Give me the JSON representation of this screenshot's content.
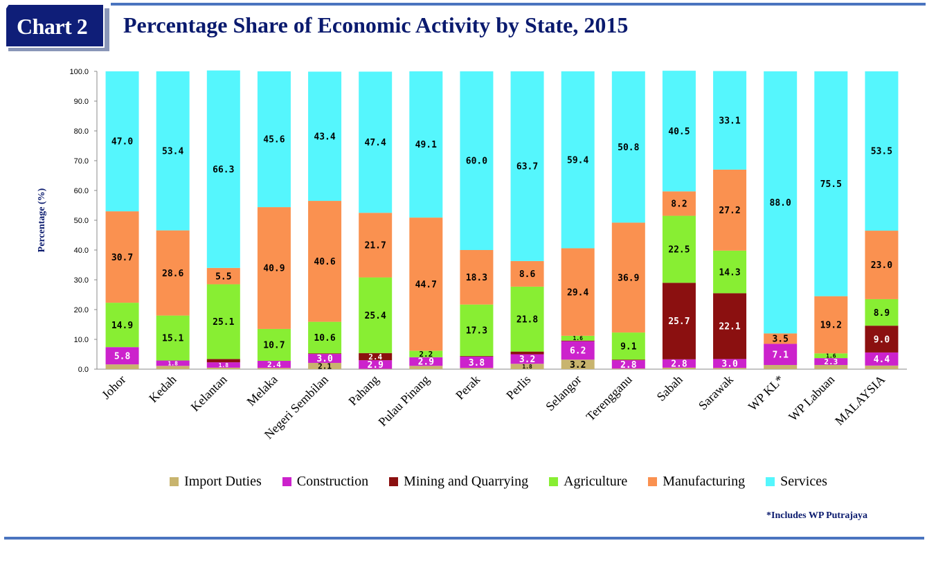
{
  "header": {
    "badge": "Chart 2",
    "title": "Percentage Share of Economic Activity by State, 2015"
  },
  "footnote": "*Includes WP Putrajaya",
  "chart_data": {
    "type": "bar",
    "stacked": true,
    "title": "Percentage Share of Economic Activity by State, 2015",
    "ylabel": "Percentage (%)",
    "xlabel": "",
    "ylim": [
      0,
      100
    ],
    "yticks": [
      "0.0",
      "10.0",
      "20.0",
      "30.0",
      "40.0",
      "50.0",
      "60.0",
      "70.0",
      "80.0",
      "90.0",
      "100.0"
    ],
    "grid": false,
    "legend_position": "bottom",
    "categories": [
      "Johor",
      "Kedah",
      "Kelantan",
      "Melaka",
      "Negeri Sembilan",
      "Pahang",
      "Pulau Pinang",
      "Perak",
      "Perlis",
      "Selangor",
      "Terengganu",
      "Sabah",
      "Sarawak",
      "WP KL*",
      "WP Labuan",
      "MALAYSIA"
    ],
    "series": [
      {
        "name": "Import Duties",
        "color": "#c8b46e",
        "values": [
          1.6,
          1.1,
          0.5,
          0.4,
          2.1,
          0.1,
          1.1,
          0.4,
          1.8,
          3.2,
          0.2,
          0.5,
          0.4,
          1.4,
          1.4,
          1.2
        ],
        "labels": [
          "",
          "",
          "",
          "",
          "2.1",
          "",
          "",
          "",
          "1.8",
          "3.2",
          "",
          "",
          "",
          "",
          "",
          ""
        ]
      },
      {
        "name": "Construction",
        "color": "#cc22cc",
        "values": [
          5.8,
          1.8,
          1.8,
          2.4,
          3.0,
          2.9,
          2.9,
          3.8,
          3.2,
          6.2,
          2.8,
          2.8,
          3.0,
          7.1,
          2.3,
          4.4
        ],
        "labels": [
          "5.8",
          "1.8",
          "1.8",
          "2.4",
          "3.0",
          "2.9",
          "2.9",
          "3.8",
          "3.2",
          "6.2",
          "2.8",
          "2.8",
          "3.0",
          "7.1",
          "2.3",
          "4.4"
        ]
      },
      {
        "name": "Mining and Quarrying",
        "color": "#8b1010",
        "values": [
          0.0,
          0.0,
          1.1,
          0.0,
          0.2,
          2.4,
          0.0,
          0.2,
          0.9,
          0.2,
          0.2,
          25.7,
          22.1,
          0.0,
          0.0,
          9.0
        ],
        "labels": [
          "",
          "",
          "",
          "",
          "",
          "2.4",
          "",
          "",
          "",
          "",
          "",
          "25.7",
          "22.1",
          "",
          "",
          "9.0"
        ]
      },
      {
        "name": "Agriculture",
        "color": "#88ee33",
        "values": [
          14.9,
          15.1,
          25.1,
          10.7,
          10.6,
          25.4,
          2.2,
          17.3,
          21.8,
          1.6,
          9.1,
          22.5,
          14.3,
          0.0,
          1.6,
          8.9
        ],
        "labels": [
          "14.9",
          "15.1",
          "25.1",
          "10.7",
          "10.6",
          "25.4",
          "2.2",
          "17.3",
          "21.8",
          "1.6",
          "9.1",
          "22.5",
          "14.3",
          "",
          "1.6",
          "8.9"
        ]
      },
      {
        "name": "Manufacturing",
        "color": "#fa9150",
        "values": [
          30.7,
          28.6,
          5.5,
          40.9,
          40.6,
          21.7,
          44.7,
          18.3,
          8.6,
          29.4,
          36.9,
          8.2,
          27.2,
          3.5,
          19.2,
          23.0
        ],
        "labels": [
          "30.7",
          "28.6",
          "5.5",
          "40.9",
          "40.6",
          "21.7",
          "44.7",
          "18.3",
          "8.6",
          "29.4",
          "36.9",
          "8.2",
          "27.2",
          "3.5",
          "19.2",
          "23.0"
        ]
      },
      {
        "name": "Services",
        "color": "#55f6fd",
        "values": [
          47.0,
          53.4,
          66.3,
          45.6,
          43.4,
          47.4,
          49.1,
          60.0,
          63.7,
          59.4,
          50.8,
          40.5,
          33.1,
          88.0,
          75.5,
          53.5
        ],
        "labels": [
          "47.0",
          "53.4",
          "66.3",
          "45.6",
          "43.4",
          "47.4",
          "49.1",
          "60.0",
          "63.7",
          "59.4",
          "50.8",
          "40.5",
          "33.1",
          "88.0",
          "75.5",
          "53.5"
        ]
      }
    ]
  }
}
